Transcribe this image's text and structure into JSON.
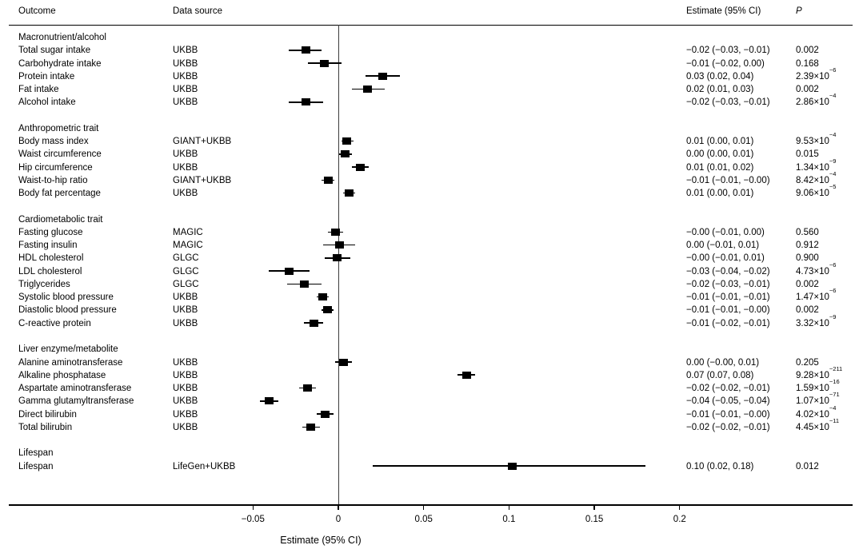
{
  "header": {
    "outcome": "Outcome",
    "source": "Data source",
    "estimate": "Estimate (95% CI)",
    "p": "P"
  },
  "colors": {
    "background": "#ffffff",
    "text": "#000000",
    "marker": "#000000",
    "zero_line": "#3c3c3c",
    "axis": "#000000"
  },
  "chart_data": {
    "type": "forest",
    "xlabel": "Estimate (95% CI)",
    "xlim": [
      -0.08,
      0.21
    ],
    "x_ticks": [
      -0.05,
      0,
      0.05,
      0.1,
      0.15,
      0.2
    ],
    "x_tick_labels": [
      "−0.05",
      "0",
      "0.05",
      "0.1",
      "0.15",
      "0.2"
    ],
    "zero_reference": 0,
    "grid": false,
    "groups": [
      {
        "label": "Macronutrient/alcohol",
        "rows": [
          {
            "outcome": "Total sugar intake",
            "source": "UKBB",
            "estimate_label": "−0.02 (−0.03, −0.01)",
            "p": "0.002",
            "p_sup": "",
            "est": -0.019,
            "lo": -0.029,
            "hi": -0.01
          },
          {
            "outcome": "Carbohydrate intake",
            "source": "UKBB",
            "estimate_label": "−0.01 (−0.02, 0.00)",
            "p": "0.168",
            "p_sup": "",
            "est": -0.008,
            "lo": -0.018,
            "hi": 0.002
          },
          {
            "outcome": "Protein intake",
            "source": "UKBB",
            "estimate_label": "0.03 (0.02, 0.04)",
            "p": "2.39×10",
            "p_sup": "−6",
            "est": 0.026,
            "lo": 0.016,
            "hi": 0.036
          },
          {
            "outcome": "Fat intake",
            "source": "UKBB",
            "estimate_label": "0.02 (0.01, 0.03)",
            "p": "0.002",
            "p_sup": "",
            "est": 0.017,
            "lo": 0.008,
            "hi": 0.027
          },
          {
            "outcome": "Alcohol intake",
            "source": "UKBB",
            "estimate_label": "−0.02 (−0.03, −0.01)",
            "p": "2.86×10",
            "p_sup": "−4",
            "est": -0.019,
            "lo": -0.029,
            "hi": -0.009
          }
        ]
      },
      {
        "label": "Anthropometric trait",
        "rows": [
          {
            "outcome": "Body mass index",
            "source": "GIANT+UKBB",
            "estimate_label": "0.01 (0.00, 0.01)",
            "p": "9.53×10",
            "p_sup": "−4",
            "est": 0.005,
            "lo": 0.002,
            "hi": 0.009
          },
          {
            "outcome": "Waist circumference",
            "source": "UKBB",
            "estimate_label": "0.00 (0.00, 0.01)",
            "p": "0.015",
            "p_sup": "",
            "est": 0.004,
            "lo": 0.0005,
            "hi": 0.008
          },
          {
            "outcome": "Hip circumference",
            "source": "UKBB",
            "estimate_label": "0.01 (0.01, 0.02)",
            "p": "1.34×10",
            "p_sup": "−9",
            "est": 0.013,
            "lo": 0.008,
            "hi": 0.018
          },
          {
            "outcome": "Waist-to-hip ratio",
            "source": "GIANT+UKBB",
            "estimate_label": "−0.01 (−0.01, −0.00)",
            "p": "8.42×10",
            "p_sup": "−4",
            "est": -0.006,
            "lo": -0.01,
            "hi": -0.0025
          },
          {
            "outcome": "Body fat percentage",
            "source": "UKBB",
            "estimate_label": "0.01 (0.00, 0.01)",
            "p": "9.06×10",
            "p_sup": "−5",
            "est": 0.0065,
            "lo": 0.003,
            "hi": 0.01
          }
        ]
      },
      {
        "label": "Cardiometabolic trait",
        "rows": [
          {
            "outcome": "Fasting glucose",
            "source": "MAGIC",
            "estimate_label": "−0.00 (−0.01, 0.00)",
            "p": "0.560",
            "p_sup": "",
            "est": -0.0015,
            "lo": -0.006,
            "hi": 0.003
          },
          {
            "outcome": "Fasting insulin",
            "source": "MAGIC",
            "estimate_label": "0.00 (−0.01, 0.01)",
            "p": "0.912",
            "p_sup": "",
            "est": 0.0005,
            "lo": -0.009,
            "hi": 0.01
          },
          {
            "outcome": "HDL cholesterol",
            "source": "GLGC",
            "estimate_label": "−0.00 (−0.01, 0.01)",
            "p": "0.900",
            "p_sup": "",
            "est": -0.0005,
            "lo": -0.008,
            "hi": 0.007
          },
          {
            "outcome": "LDL cholesterol",
            "source": "GLGC",
            "estimate_label": "−0.03 (−0.04, −0.02)",
            "p": "4.73×10",
            "p_sup": "−6",
            "est": -0.029,
            "lo": -0.041,
            "hi": -0.017
          },
          {
            "outcome": "Triglycerides",
            "source": "GLGC",
            "estimate_label": "−0.02 (−0.03, −0.01)",
            "p": "0.002",
            "p_sup": "",
            "est": -0.02,
            "lo": -0.03,
            "hi": -0.01
          },
          {
            "outcome": "Systolic blood pressure",
            "source": "UKBB",
            "estimate_label": "−0.01 (−0.01, −0.01)",
            "p": "1.47×10",
            "p_sup": "−6",
            "est": -0.009,
            "lo": -0.0125,
            "hi": -0.0055
          },
          {
            "outcome": "Diastolic blood pressure",
            "source": "UKBB",
            "estimate_label": "−0.01 (−0.01, −0.00)",
            "p": "0.002",
            "p_sup": "",
            "est": -0.0065,
            "lo": -0.01,
            "hi": -0.003
          },
          {
            "outcome": "C-reactive protein",
            "source": "UKBB",
            "estimate_label": "−0.01 (−0.02, −0.01)",
            "p": "3.32×10",
            "p_sup": "−9",
            "est": -0.0145,
            "lo": -0.02,
            "hi": -0.009
          }
        ]
      },
      {
        "label": "Liver enzyme/metabolite",
        "rows": [
          {
            "outcome": "Alanine aminotransferase",
            "source": "UKBB",
            "estimate_label": "0.00 (−0.00, 0.01)",
            "p": "0.205",
            "p_sup": "",
            "est": 0.003,
            "lo": -0.002,
            "hi": 0.008
          },
          {
            "outcome": "Alkaline phosphatase",
            "source": "UKBB",
            "estimate_label": "0.07 (0.07, 0.08)",
            "p": "9.28×10",
            "p_sup": "−211",
            "est": 0.075,
            "lo": 0.07,
            "hi": 0.08
          },
          {
            "outcome": "Aspartate aminotransferase",
            "source": "UKBB",
            "estimate_label": "−0.02 (−0.02, −0.01)",
            "p": "1.59×10",
            "p_sup": "−16",
            "est": -0.018,
            "lo": -0.023,
            "hi": -0.013
          },
          {
            "outcome": "Gamma glutamyltransferase",
            "source": "UKBB",
            "estimate_label": "−0.04 (−0.05, −0.04)",
            "p": "1.07×10",
            "p_sup": "−71",
            "est": -0.0405,
            "lo": -0.046,
            "hi": -0.035
          },
          {
            "outcome": "Direct bilirubin",
            "source": "UKBB",
            "estimate_label": "−0.01 (−0.01, −0.00)",
            "p": "4.02×10",
            "p_sup": "−4",
            "est": -0.0075,
            "lo": -0.0125,
            "hi": -0.003
          },
          {
            "outcome": "Total bilirubin",
            "source": "UKBB",
            "estimate_label": "−0.02 (−0.02, −0.01)",
            "p": "4.45×10",
            "p_sup": "−11",
            "est": -0.016,
            "lo": -0.021,
            "hi": -0.011
          }
        ]
      },
      {
        "label": "Lifespan",
        "rows": [
          {
            "outcome": "Lifespan",
            "source": "LifeGen+UKBB",
            "estimate_label": "0.10 (0.02, 0.18)",
            "p": "0.012",
            "p_sup": "",
            "est": 0.102,
            "lo": 0.02,
            "hi": 0.18
          }
        ]
      }
    ]
  }
}
